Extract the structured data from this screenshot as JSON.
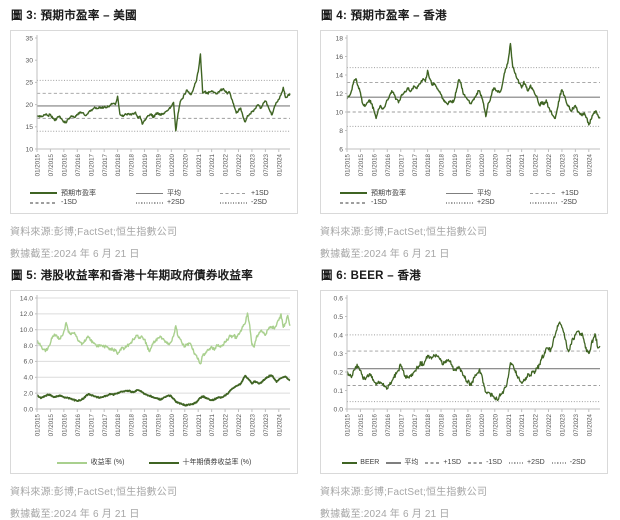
{
  "colors": {
    "series_dark": "#3f6423",
    "series_light": "#a9d08e",
    "average_line": "#7f7f7f",
    "sd_line": "#9e9e9e",
    "gridline": "#dcdcdc",
    "axis": "#bfbfbf",
    "tick_label": "#595959",
    "legend_label": "#404040",
    "title_text": "#1a1a1a",
    "source_text": "#a6a6a6",
    "frame_border": "#d9d9d9",
    "background": "#ffffff"
  },
  "source": {
    "line1": "資料來源:彭博;FactSet;恒生指數公司",
    "line2": "數據截至:2024 年 6 月 21 日"
  },
  "chart_data": [
    {
      "id": "fig3",
      "type": "line",
      "title": "圖 3: 預期市盈率 – 美國",
      "ylim": [
        10,
        35
      ],
      "yticks": [
        "10",
        "15",
        "20",
        "25",
        "30",
        "35"
      ],
      "x_start": "01/2015",
      "x_end": "06/2024",
      "x_tick_interval_months": 6,
      "x_ticklabels": [
        "01/2015",
        "07/2015",
        "01/2016",
        "07/2016",
        "01/2017",
        "07/2017",
        "01/2018",
        "07/2018",
        "01/2019",
        "07/2019",
        "01/2020",
        "07/2020",
        "01/2021",
        "07/2021",
        "01/2022",
        "07/2022",
        "01/2023",
        "07/2023",
        "01/2024"
      ],
      "grid": false,
      "stat_lines": {
        "average": 19.7,
        "plus_1sd": 22.55,
        "plus_2sd": 25.45,
        "minus_1sd": 16.9,
        "minus_2sd": 14.0
      },
      "series": [
        {
          "name": "預期市盈率",
          "color_key": "series_dark",
          "width": 1.4,
          "jitter": 0.25,
          "values": [
            17.2,
            17.5,
            17.3,
            17.7,
            17.9,
            17.5,
            17.8,
            16.9,
            16.4,
            17.1,
            17.4,
            16.8,
            16.2,
            15.9,
            16.8,
            17.2,
            17.4,
            17.1,
            17.8,
            18.2,
            18.1,
            17.8,
            17.6,
            18.3,
            18.7,
            19.0,
            19.3,
            19.1,
            19.4,
            19.2,
            19.5,
            19.3,
            19.6,
            20.0,
            20.3,
            20.0,
            21.9,
            17.9,
            17.4,
            17.6,
            17.8,
            18.0,
            17.7,
            18.0,
            18.3,
            17.0,
            17.4,
            15.6,
            16.5,
            17.2,
            17.5,
            17.9,
            17.1,
            17.8,
            18.2,
            17.6,
            17.9,
            18.1,
            18.6,
            19.1,
            19.6,
            20.5,
            14.1,
            18.0,
            20.7,
            21.4,
            22.4,
            23.3,
            22.6,
            22.4,
            23.8,
            25.1,
            27.4,
            31.4,
            22.6,
            22.9,
            22.5,
            22.8,
            23.1,
            22.7,
            22.4,
            22.9,
            23.2,
            23.5,
            23.1,
            22.4,
            22.8,
            21.2,
            19.6,
            18.1,
            18.7,
            19.2,
            17.3,
            16.1,
            17.5,
            17.9,
            18.4,
            18.9,
            19.6,
            19.9,
            19.2,
            20.3,
            20.8,
            19.9,
            18.6,
            17.7,
            19.4,
            20.5,
            21.2,
            22.2,
            23.9,
            21.6,
            22.0,
            22.5
          ]
        }
      ],
      "legend_rows": 2,
      "legend": [
        {
          "label": "預期市盈率",
          "style": "series-dark"
        },
        {
          "label": "平均",
          "style": "avg"
        },
        {
          "label": "+1SD",
          "style": "dashed"
        },
        {
          "label": "-1SD",
          "style": "dashed"
        },
        {
          "label": "+2SD",
          "style": "dotted"
        },
        {
          "label": "-2SD",
          "style": "dotted"
        }
      ]
    },
    {
      "id": "fig4",
      "type": "line",
      "title": "圖 4: 預期市盈率 – 香港",
      "ylim": [
        6,
        18
      ],
      "yticks": [
        "6",
        "8",
        "10",
        "12",
        "14",
        "16",
        "18"
      ],
      "x_start": "01/2015",
      "x_end": "06/2024",
      "x_tick_interval_months": 6,
      "x_ticklabels": [
        "01/2015",
        "07/2015",
        "01/2016",
        "07/2016",
        "01/2017",
        "07/2017",
        "01/2018",
        "07/2018",
        "01/2019",
        "07/2019",
        "01/2020",
        "07/2020",
        "01/2021",
        "07/2021",
        "01/2022",
        "07/2022",
        "01/2023",
        "07/2023",
        "01/2024"
      ],
      "grid": false,
      "stat_lines": {
        "average": 11.6,
        "plus_1sd": 13.2,
        "plus_2sd": 14.8,
        "minus_1sd": 10.0,
        "minus_2sd": 8.45
      },
      "series": [
        {
          "name": "預期市盈率",
          "color_key": "series_dark",
          "width": 1.4,
          "jitter": 0.16,
          "values": [
            11.4,
            11.7,
            12.3,
            13.3,
            13.6,
            12.8,
            12.1,
            10.9,
            10.6,
            11.0,
            11.3,
            10.9,
            10.2,
            9.3,
            10.3,
            10.7,
            10.4,
            10.6,
            11.3,
            11.8,
            12.3,
            11.9,
            11.4,
            11.0,
            11.6,
            11.9,
            12.2,
            12.6,
            12.3,
            12.5,
            12.8,
            12.6,
            12.9,
            13.2,
            13.6,
            13.3,
            14.5,
            13.6,
            12.9,
            13.1,
            12.7,
            12.3,
            11.9,
            11.4,
            11.1,
            10.8,
            11.2,
            11.0,
            11.4,
            12.5,
            13.5,
            13.0,
            11.9,
            11.6,
            11.3,
            10.9,
            11.2,
            11.6,
            12.0,
            12.3,
            11.8,
            10.9,
            9.5,
            10.9,
            11.3,
            12.4,
            12.6,
            12.3,
            12.1,
            12.5,
            13.8,
            14.7,
            15.6,
            17.4,
            14.9,
            14.2,
            13.6,
            13.1,
            12.6,
            13.3,
            12.7,
            12.3,
            12.9,
            12.4,
            11.9,
            11.5,
            10.7,
            11.1,
            10.8,
            11.3,
            10.5,
            10.1,
            9.6,
            9.3,
            10.4,
            11.6,
            12.4,
            11.8,
            11.0,
            10.6,
            10.1,
            10.4,
            10.7,
            10.0,
            9.8,
            9.6,
            9.9,
            9.4,
            8.6,
            9.2,
            9.8,
            10.1,
            9.7,
            9.3
          ]
        }
      ],
      "legend_rows": 2,
      "legend": [
        {
          "label": "預期市盈率",
          "style": "series-dark"
        },
        {
          "label": "平均",
          "style": "avg"
        },
        {
          "label": "+1SD",
          "style": "dashed"
        },
        {
          "label": "-1SD",
          "style": "dashed"
        },
        {
          "label": "+2SD",
          "style": "dotted"
        },
        {
          "label": "-2SD",
          "style": "dotted"
        }
      ]
    },
    {
      "id": "fig5",
      "type": "line",
      "title": "圖 5: 港股收益率和香港十年期政府債券收益率",
      "ylim": [
        0,
        14
      ],
      "yticks": [
        "0.0",
        "2.0",
        "4.0",
        "6.0",
        "8.0",
        "10.0",
        "12.0",
        "14.0"
      ],
      "x_start": "01/2015",
      "x_end": "06/2024",
      "x_tick_interval_months": 6,
      "x_ticklabels": [
        "01/2015",
        "07/2015",
        "01/2016",
        "07/2016",
        "01/2017",
        "07/2017",
        "01/2018",
        "07/2018",
        "01/2019",
        "07/2019",
        "01/2020",
        "07/2020",
        "01/2021",
        "07/2021",
        "01/2022",
        "07/2022",
        "01/2023",
        "07/2023",
        "01/2024"
      ],
      "grid": true,
      "stat_lines": null,
      "series": [
        {
          "name": "收益率 (%)",
          "color_key": "series_light",
          "width": 1.4,
          "jitter": 0.2,
          "values": [
            8.6,
            8.2,
            7.9,
            7.5,
            7.4,
            7.8,
            8.3,
            9.2,
            9.4,
            9.1,
            8.9,
            9.2,
            9.8,
            10.9,
            9.7,
            9.4,
            9.6,
            9.4,
            8.9,
            8.5,
            8.1,
            8.4,
            8.8,
            9.1,
            8.6,
            8.4,
            8.2,
            7.9,
            8.1,
            8.0,
            7.8,
            7.9,
            7.7,
            7.6,
            7.4,
            7.5,
            6.9,
            7.4,
            7.8,
            7.6,
            7.9,
            8.1,
            8.4,
            8.8,
            9.0,
            9.3,
            8.9,
            9.1,
            8.8,
            8.0,
            7.3,
            7.7,
            8.4,
            8.6,
            8.9,
            9.2,
            8.9,
            8.6,
            8.3,
            8.1,
            8.5,
            9.2,
            10.5,
            9.2,
            8.8,
            8.1,
            7.9,
            8.1,
            8.3,
            8.0,
            7.2,
            6.8,
            6.4,
            5.7,
            6.7,
            7.0,
            7.4,
            7.6,
            7.9,
            7.5,
            7.9,
            8.1,
            7.8,
            8.1,
            8.4,
            8.7,
            9.3,
            9.0,
            9.3,
            8.9,
            9.5,
            9.9,
            10.4,
            10.8,
            12.1,
            10.6,
            8.1,
            7.8,
            9.1,
            9.4,
            9.9,
            9.6,
            9.3,
            10.0,
            10.2,
            10.4,
            10.1,
            10.6,
            11.2,
            12.0,
            10.3,
            10.8,
            11.8,
            10.5
          ]
        },
        {
          "name": "十年期債券收益率 (%)",
          "color_key": "series_dark",
          "width": 1.8,
          "jitter": 0.08,
          "values": [
            1.7,
            1.5,
            1.4,
            1.6,
            1.7,
            1.8,
            1.8,
            1.6,
            1.5,
            1.6,
            1.7,
            1.6,
            1.5,
            1.4,
            1.4,
            1.3,
            1.2,
            1.1,
            1.0,
            1.1,
            1.2,
            1.4,
            1.7,
            1.9,
            1.8,
            1.7,
            1.6,
            1.5,
            1.4,
            1.5,
            1.6,
            1.7,
            1.8,
            1.9,
            1.8,
            1.9,
            2.0,
            2.1,
            2.2,
            2.2,
            2.3,
            2.3,
            2.2,
            2.1,
            2.3,
            2.4,
            2.3,
            2.1,
            1.9,
            1.8,
            1.7,
            1.6,
            1.5,
            1.4,
            1.3,
            1.2,
            1.3,
            1.5,
            1.6,
            1.7,
            1.6,
            1.3,
            0.9,
            0.8,
            0.7,
            0.6,
            0.5,
            0.45,
            0.55,
            0.6,
            0.7,
            0.8,
            1.1,
            1.4,
            1.6,
            1.5,
            1.3,
            1.2,
            1.1,
            1.2,
            1.3,
            1.5,
            1.4,
            1.5,
            1.7,
            1.9,
            2.2,
            2.5,
            2.7,
            2.9,
            3.0,
            3.2,
            3.7,
            4.2,
            3.9,
            3.6,
            3.2,
            3.5,
            3.4,
            3.2,
            3.3,
            3.6,
            3.8,
            4.0,
            4.2,
            4.2,
            3.8,
            3.4,
            3.7,
            3.9,
            4.0,
            4.1,
            3.8,
            3.6
          ]
        }
      ],
      "legend_rows": 1,
      "legend": [
        {
          "label": "收益率 (%)",
          "style": "series-light"
        },
        {
          "label": "十年期債券收益率 (%)",
          "style": "series-dark"
        }
      ]
    },
    {
      "id": "fig6",
      "type": "line",
      "title": "圖 6: BEER – 香港",
      "ylim": [
        0,
        0.6
      ],
      "yticks": [
        "0.0",
        "0.1",
        "0.2",
        "0.3",
        "0.4",
        "0.5",
        "0.6"
      ],
      "x_start": "01/2015",
      "x_end": "06/2024",
      "x_tick_interval_months": 6,
      "x_ticklabels": [
        "01/2015",
        "07/2015",
        "01/2016",
        "07/2016",
        "01/2017",
        "07/2017",
        "01/2018",
        "07/2018",
        "01/2019",
        "07/2019",
        "01/2020",
        "07/2020",
        "01/2021",
        "07/2021",
        "01/2022",
        "07/2022",
        "01/2023",
        "07/2023",
        "01/2024"
      ],
      "grid": false,
      "stat_lines": {
        "average": 0.218,
        "plus_1sd": 0.313,
        "plus_2sd": 0.401,
        "minus_1sd": 0.127,
        "minus_2sd": 0.04
      },
      "series": [
        {
          "name": "BEER",
          "color_key": "series_dark",
          "width": 1.3,
          "jitter": 0.012,
          "values": [
            0.2,
            0.18,
            0.17,
            0.21,
            0.23,
            0.23,
            0.21,
            0.17,
            0.16,
            0.18,
            0.19,
            0.17,
            0.15,
            0.13,
            0.15,
            0.14,
            0.13,
            0.12,
            0.11,
            0.13,
            0.15,
            0.17,
            0.19,
            0.21,
            0.24,
            0.21,
            0.18,
            0.17,
            0.18,
            0.19,
            0.2,
            0.22,
            0.23,
            0.25,
            0.24,
            0.26,
            0.29,
            0.28,
            0.28,
            0.29,
            0.29,
            0.28,
            0.26,
            0.24,
            0.26,
            0.26,
            0.26,
            0.23,
            0.21,
            0.22,
            0.23,
            0.21,
            0.18,
            0.16,
            0.15,
            0.13,
            0.15,
            0.17,
            0.19,
            0.21,
            0.19,
            0.14,
            0.09,
            0.09,
            0.08,
            0.07,
            0.06,
            0.05,
            0.07,
            0.08,
            0.1,
            0.12,
            0.17,
            0.25,
            0.24,
            0.21,
            0.18,
            0.16,
            0.14,
            0.16,
            0.16,
            0.19,
            0.18,
            0.2,
            0.2,
            0.22,
            0.24,
            0.28,
            0.29,
            0.33,
            0.32,
            0.32,
            0.36,
            0.4,
            0.45,
            0.47,
            0.44,
            0.41,
            0.35,
            0.31,
            0.35,
            0.38,
            0.4,
            0.42,
            0.4,
            0.41,
            0.36,
            0.31,
            0.3,
            0.34,
            0.38,
            0.4,
            0.33,
            0.34
          ]
        }
      ],
      "legend_rows": 1,
      "legend": [
        {
          "label": "BEER",
          "style": "series-dark"
        },
        {
          "label": "平均",
          "style": "avg"
        },
        {
          "label": "+1SD",
          "style": "dashed"
        },
        {
          "label": "-1SD",
          "style": "dashed"
        },
        {
          "label": "+2SD",
          "style": "dotted"
        },
        {
          "label": "-2SD",
          "style": "dotted"
        }
      ]
    }
  ]
}
